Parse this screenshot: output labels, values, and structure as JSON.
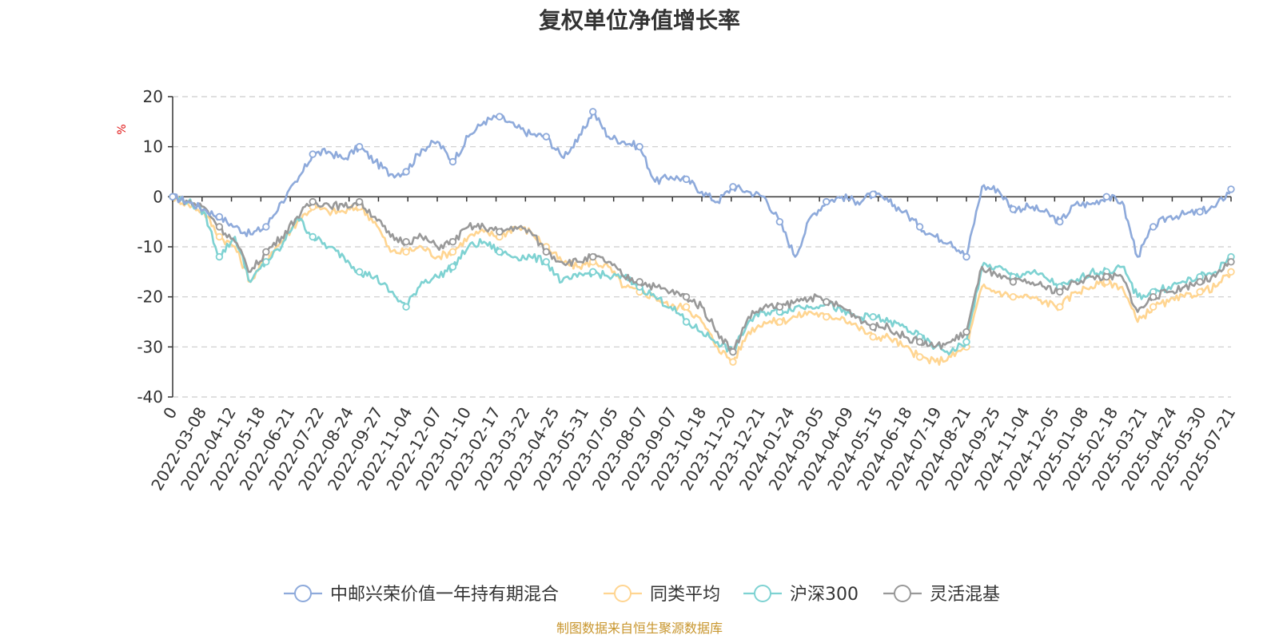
{
  "chart_data": {
    "type": "line",
    "title": "复权单位净值增长率",
    "ylabel": "%",
    "ylim": [
      -40,
      20
    ],
    "yticks": [
      20,
      10,
      0,
      -10,
      -20,
      -30,
      -40
    ],
    "grid": true,
    "legend_position": "bottom",
    "x_tick_labels": [
      "0",
      "2022-03-08",
      "2022-04-12",
      "2022-05-18",
      "2022-06-21",
      "2022-07-22",
      "2022-08-24",
      "2022-09-27",
      "2022-11-04",
      "2022-12-07",
      "2023-01-10",
      "2023-02-17",
      "2023-03-22",
      "2023-04-25",
      "2023-05-31",
      "2023-07-05",
      "2023-08-07",
      "2023-09-07",
      "2023-10-18",
      "2023-11-20",
      "2023-12-21",
      "2024-01-24",
      "2024-03-05",
      "2024-04-09",
      "2024-05-15",
      "2024-06-18",
      "2024-07-19",
      "2024-08-21",
      "2024-09-25",
      "2024-11-04",
      "2024-12-05",
      "2025-01-08",
      "2025-02-18",
      "2025-03-21",
      "2025-04-24",
      "2025-05-30",
      "2025-07-21"
    ],
    "series": [
      {
        "name": "中邮兴荣价值一年持有期混合",
        "color": "#8eaadb",
        "values": [
          0,
          -1,
          -2.5,
          -4,
          -6,
          -7.5,
          -6,
          -1,
          3,
          8.5,
          9,
          7.5,
          10,
          7,
          4.5,
          5,
          9.5,
          11,
          7,
          12,
          15,
          16,
          14,
          12.5,
          12,
          8,
          11,
          17,
          12,
          11,
          10,
          3,
          4,
          3.5,
          1,
          -1,
          2,
          1,
          0,
          -5,
          -12,
          -4,
          -1,
          0,
          -1,
          0.5,
          -1,
          -3,
          -6,
          -8,
          -9,
          -12,
          2,
          1.5,
          -2.5,
          -2,
          -3,
          -5,
          -1.5,
          -1.5,
          0,
          -1,
          -12,
          -6,
          -4,
          -3.5,
          -3,
          -2,
          1.5
        ]
      },
      {
        "name": "同类平均",
        "color": "#ffd591",
        "values": [
          0,
          -1.5,
          -3,
          -8,
          -10,
          -17,
          -12,
          -9,
          -5,
          -2,
          -3,
          -3,
          -2,
          -5,
          -11,
          -11,
          -10,
          -12,
          -11,
          -8,
          -7,
          -8,
          -6,
          -7,
          -10,
          -13,
          -14,
          -13,
          -14,
          -18,
          -19,
          -20,
          -22,
          -22,
          -25,
          -30,
          -33,
          -27,
          -25,
          -25,
          -24,
          -23,
          -24,
          -24,
          -26,
          -28,
          -28,
          -30,
          -32,
          -33,
          -32,
          -30,
          -18,
          -19,
          -20,
          -20,
          -21,
          -22,
          -19,
          -18,
          -17,
          -18,
          -25,
          -22,
          -21,
          -20,
          -19,
          -18,
          -15
        ]
      },
      {
        "name": "沪深300",
        "color": "#7ed2d2",
        "values": [
          0,
          -1,
          -3,
          -12,
          -8,
          -17,
          -13,
          -10,
          -4,
          -8,
          -10,
          -12,
          -15,
          -16,
          -19,
          -22,
          -17,
          -16,
          -14,
          -10,
          -9,
          -11,
          -12,
          -12,
          -13,
          -17,
          -16,
          -15,
          -16,
          -16,
          -18,
          -20,
          -22,
          -25,
          -27,
          -29,
          -31,
          -25,
          -23,
          -23,
          -22,
          -22,
          -21,
          -23,
          -24,
          -24,
          -25,
          -26,
          -28,
          -30,
          -31,
          -29,
          -14,
          -14,
          -16,
          -15,
          -16,
          -18,
          -17,
          -15,
          -15,
          -14,
          -20,
          -19,
          -18,
          -17,
          -16,
          -15,
          -12
        ]
      },
      {
        "name": "灵活混基",
        "color": "#999999",
        "values": [
          0,
          -1,
          -2,
          -6,
          -9,
          -15,
          -11,
          -8,
          -4,
          -1,
          -1.5,
          -2,
          -1,
          -4,
          -8,
          -9,
          -8,
          -10,
          -9,
          -6,
          -6,
          -7,
          -6,
          -7,
          -11,
          -13,
          -13,
          -12,
          -13,
          -16,
          -17,
          -18,
          -19,
          -20,
          -22,
          -27,
          -31,
          -24,
          -22,
          -22,
          -21,
          -20,
          -21,
          -22,
          -24,
          -26,
          -26,
          -28,
          -29,
          -30,
          -29,
          -27,
          -14,
          -16,
          -17,
          -17,
          -18,
          -19,
          -17,
          -16,
          -16,
          -16,
          -23,
          -20,
          -19,
          -18,
          -17,
          -16,
          -13
        ]
      }
    ]
  },
  "footer": {
    "source": "制图数据来自恒生聚源数据库"
  }
}
